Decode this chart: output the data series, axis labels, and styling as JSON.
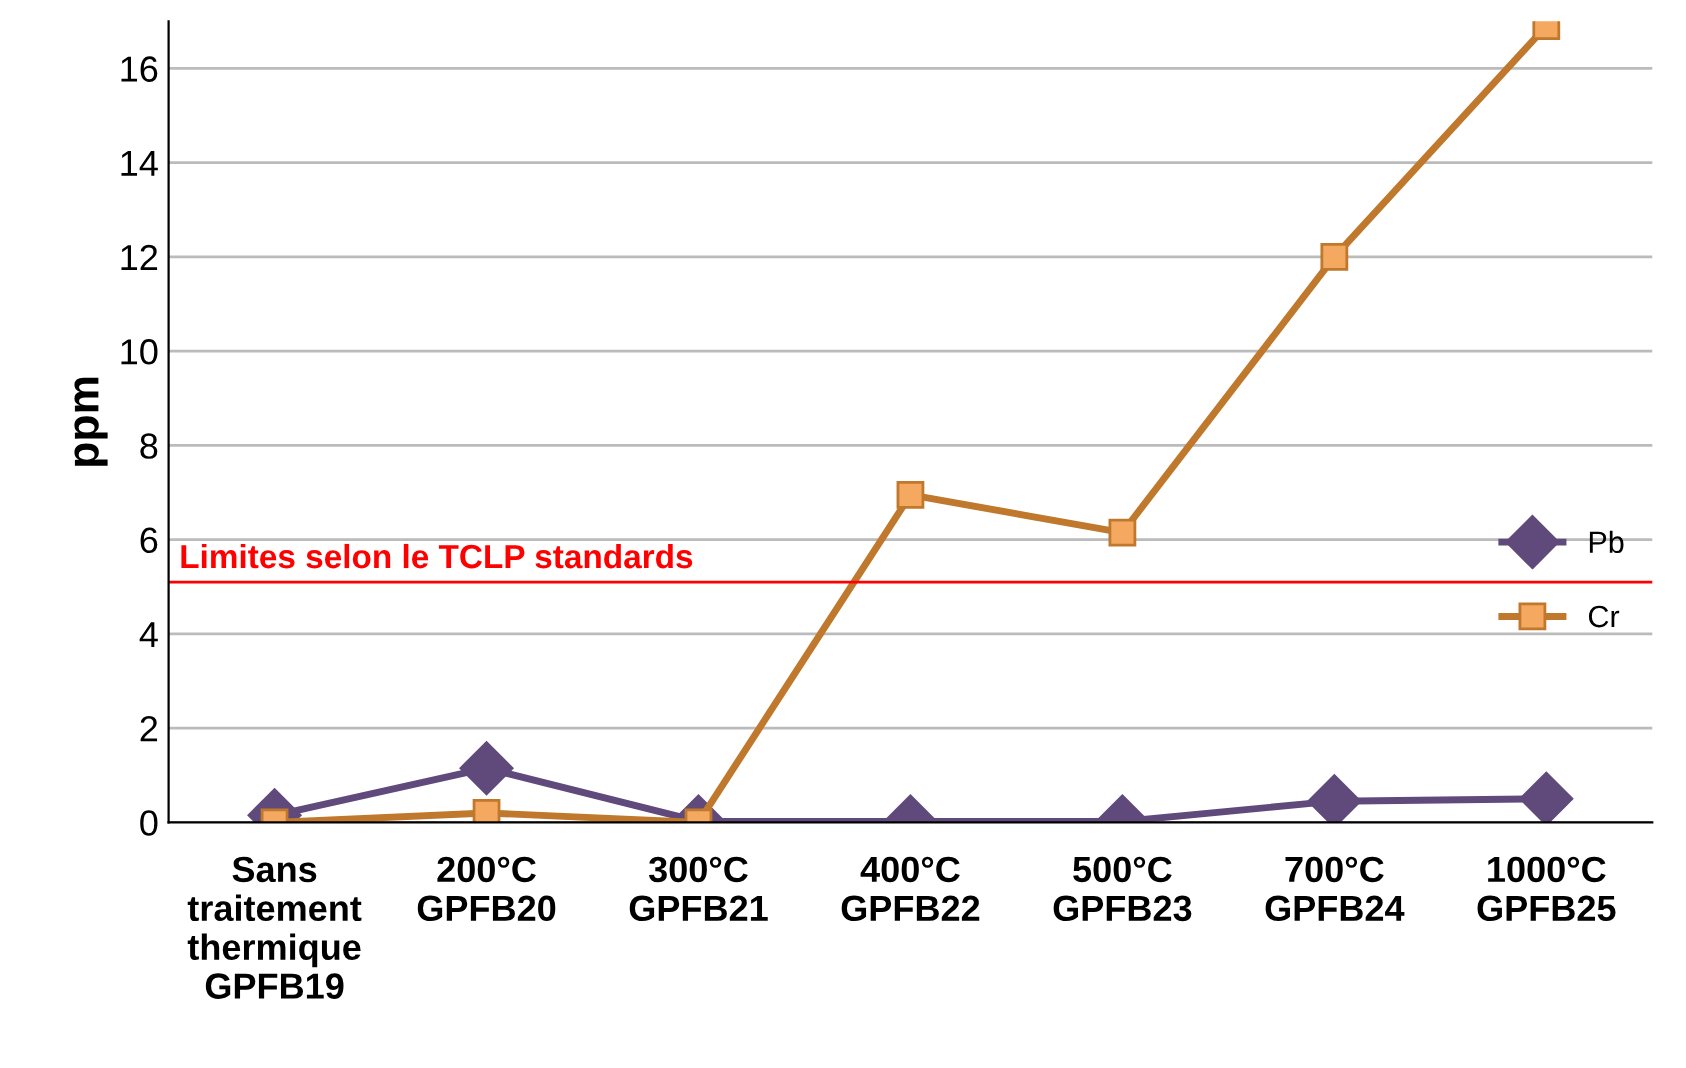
{
  "chart_data": {
    "type": "line",
    "ylabel": "ppm",
    "categories": [
      "Sans\ntraitement\nthermique\nGPFB19",
      "200°C\nGPFB20",
      "300°C\nGPFB21",
      "400°C\nGPFB22",
      "500°C\nGPFB23",
      "700°C\nGPFB24",
      "1000°C\nGPFB25"
    ],
    "series": [
      {
        "name": "Pb",
        "color": "#604a7b",
        "marker": "diamond",
        "values": [
          0.15,
          1.15,
          0.02,
          0.02,
          0.02,
          0.45,
          0.5
        ]
      },
      {
        "name": "Cr",
        "color": "#c0782c",
        "marker": "square",
        "values": [
          0,
          0.2,
          0,
          6.95,
          6.15,
          12,
          16.9
        ]
      }
    ],
    "ylim": [
      0,
      17
    ],
    "yticks": [
      0,
      2,
      4,
      6,
      8,
      10,
      12,
      14,
      16
    ],
    "grid": "y",
    "legend": "right",
    "ref_lines": [
      {
        "axis": "y",
        "value": 5.1,
        "label": "Limites selon le TCLP standards",
        "color": "#ff0000"
      }
    ]
  }
}
